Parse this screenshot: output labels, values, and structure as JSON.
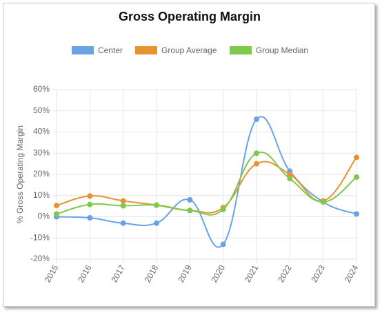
{
  "chart_data": {
    "type": "line",
    "title": "Gross Operating Margin",
    "y_label": "% Gross Operating Margin",
    "categories": [
      "2015",
      "2016",
      "2017",
      "2018",
      "2019",
      "2020",
      "2021",
      "2022",
      "2023",
      "2024"
    ],
    "series": [
      {
        "name": "Center",
        "color": "#6aa2e6",
        "values": [
          0,
          -0.5,
          -3,
          -3,
          8,
          -13,
          46,
          21.5,
          7,
          1.3
        ]
      },
      {
        "name": "Group Average",
        "color": "#e69330",
        "values": [
          5.3,
          9.8,
          7.5,
          5.5,
          3,
          4.3,
          25,
          20,
          7.5,
          28
        ]
      },
      {
        "name": "Group Median",
        "color": "#7ec84a",
        "values": [
          1.3,
          5.8,
          5.2,
          5.5,
          3,
          3.5,
          30,
          18,
          7,
          18.7
        ]
      }
    ],
    "ylim": [
      -20,
      60
    ],
    "yticks": [
      {
        "value": -20,
        "label": "-20%"
      },
      {
        "value": -10,
        "label": "-10%"
      },
      {
        "value": 0,
        "label": "0%"
      },
      {
        "value": 10,
        "label": "10%"
      },
      {
        "value": 20,
        "label": "20%"
      },
      {
        "value": 30,
        "label": "30%"
      },
      {
        "value": 40,
        "label": "40%"
      },
      {
        "value": 50,
        "label": "50%"
      },
      {
        "value": 60,
        "label": "60%"
      }
    ],
    "grid": true,
    "smooth": true,
    "legend": "top"
  }
}
